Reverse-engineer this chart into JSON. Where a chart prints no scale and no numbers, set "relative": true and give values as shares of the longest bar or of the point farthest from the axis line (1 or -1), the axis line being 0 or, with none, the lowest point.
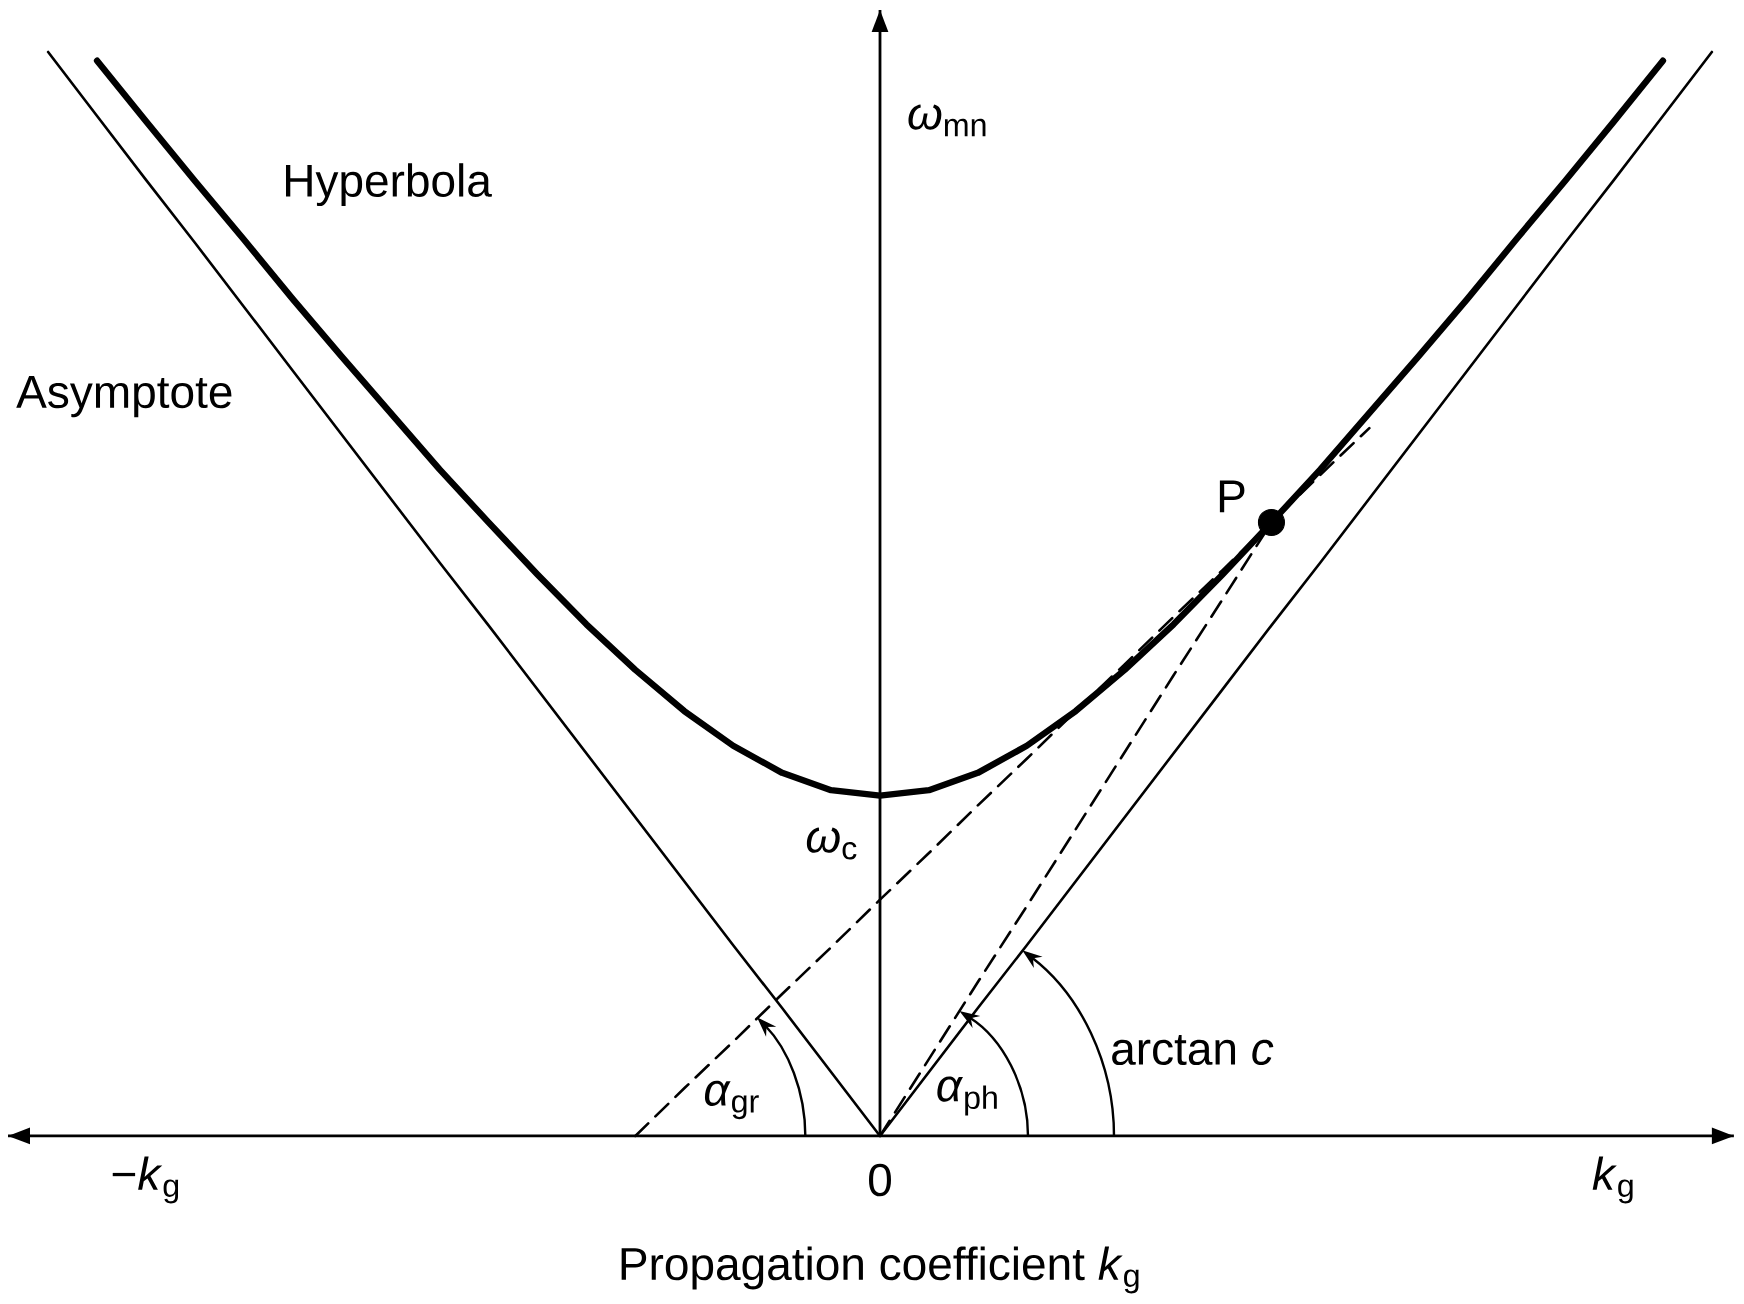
{
  "chart_data": {
    "type": "line",
    "relative": true,
    "xlabel": "Propagation coefficient *k*$_{g}$",
    "ylabel": "*ω*$_{mn}$",
    "categories": [
      null,
      null,
      "−*k*$_{g}$",
      null,
      null,
      null,
      null,
      null,
      null,
      null,
      null,
      null,
      null,
      null,
      null,
      null,
      null,
      "0",
      null,
      null,
      null,
      null,
      null,
      null,
      null,
      null,
      null,
      null,
      null,
      null,
      null,
      null,
      "*k*$_{g}$",
      null,
      null
    ],
    "series": [
      {
        "name": "Hyperbola",
        "color": "#000000",
        "values": [
          null,
          0.992,
          0.936,
          0.881,
          0.827,
          0.772,
          0.719,
          0.667,
          0.615,
          0.566,
          0.518,
          0.472,
          0.43,
          0.392,
          0.36,
          0.335,
          0.319,
          0.314,
          0.319,
          0.335,
          0.36,
          0.392,
          0.43,
          0.472,
          0.518,
          0.566,
          0.615,
          0.667,
          0.719,
          0.772,
          0.827,
          0.881,
          0.936,
          0.992,
          null
        ]
      },
      {
        "name": "Asymptote",
        "color": "#000000",
        "values": [
          1.0,
          0.941,
          0.882,
          0.824,
          0.765,
          0.706,
          0.647,
          0.588,
          0.529,
          0.471,
          0.412,
          0.353,
          0.294,
          0.235,
          0.176,
          0.118,
          0.059,
          0,
          0.059,
          0.118,
          0.176,
          0.235,
          0.294,
          0.353,
          0.412,
          0.471,
          0.529,
          0.588,
          0.647,
          0.706,
          0.765,
          0.824,
          0.882,
          0.941,
          1.0
        ]
      },
      {
        "color": "#000000",
        "line_style": "dashed",
        "values": [
          null,
          null,
          null,
          null,
          null,
          null,
          null,
          null,
          null,
          null,
          null,
          null,
          null,
          null,
          null,
          null,
          null,
          0,
          0.071,
          0.142,
          0.212,
          0.283,
          0.354,
          0.425,
          0.495,
          0.566,
          null,
          null,
          null,
          null,
          null,
          null,
          null,
          null,
          null
        ]
      },
      {
        "color": "#000000",
        "line_style": "dashed",
        "values": [
          null,
          null,
          null,
          null,
          null,
          null,
          null,
          null,
          null,
          null,
          null,
          null,
          0,
          0.044,
          0.087,
          0.131,
          0.174,
          0.218,
          0.261,
          0.305,
          0.348,
          0.392,
          0.435,
          0.479,
          0.522,
          0.566,
          0.61,
          0.653,
          null,
          null,
          null,
          null,
          null,
          null,
          null
        ]
      },
      {
        "name": "P",
        "type": "scatter",
        "color": "#000000",
        "marker": "circle",
        "values": [
          null,
          null,
          null,
          null,
          null,
          null,
          null,
          null,
          null,
          null,
          null,
          null,
          null,
          null,
          null,
          null,
          null,
          null,
          null,
          null,
          null,
          null,
          null,
          null,
          null,
          0.566,
          null,
          null,
          null,
          null,
          null,
          null,
          null,
          null,
          null
        ]
      }
    ],
    "annotations": [
      {
        "text": "*ω*$_{c}$",
        "y": 0.314
      },
      "*α*$_{gr}$",
      "*α*$_{ph}$",
      "arctan *c*"
    ]
  }
}
